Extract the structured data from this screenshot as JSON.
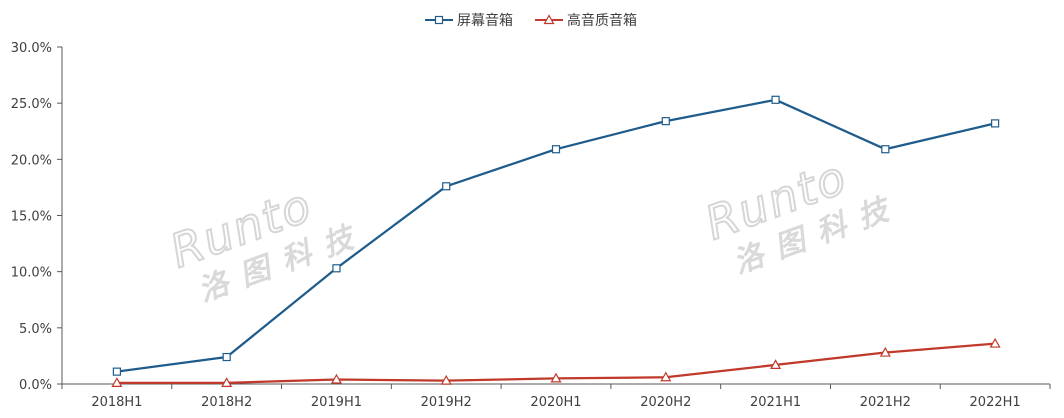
{
  "chart_data": {
    "type": "line",
    "categories": [
      "2018H1",
      "2018H2",
      "2019H1",
      "2019H2",
      "2020H1",
      "2020H2",
      "2021H1",
      "2021H2",
      "2022H1"
    ],
    "series": [
      {
        "name": "屏幕音箱",
        "values": [
          1.1,
          2.4,
          10.3,
          17.6,
          20.9,
          23.4,
          25.3,
          20.9,
          23.2
        ],
        "color": "#1F5C8B",
        "marker": "square"
      },
      {
        "name": "高音质音箱",
        "values": [
          0.1,
          0.1,
          0.4,
          0.3,
          0.5,
          0.6,
          1.7,
          2.8,
          3.6
        ],
        "color": "#C0392B",
        "marker": "triangle"
      }
    ],
    "ylim": [
      0,
      30
    ],
    "yticks": [
      "0.0%",
      "5.0%",
      "10.0%",
      "15.0%",
      "20.0%",
      "25.0%",
      "30.0%"
    ],
    "ytick_values": [
      0,
      5,
      10,
      15,
      20,
      25,
      30
    ],
    "grid": false,
    "legend_position": "top-center",
    "title": "",
    "xlabel": "",
    "ylabel": ""
  },
  "watermarks": [
    {
      "latin": "Runto",
      "chinese": "洛图科技"
    },
    {
      "latin": "Runto",
      "chinese": "洛图科技"
    }
  ],
  "colors": {
    "axis": "#595959",
    "tick_text": "#404040",
    "watermark": "#d9d9d9"
  }
}
